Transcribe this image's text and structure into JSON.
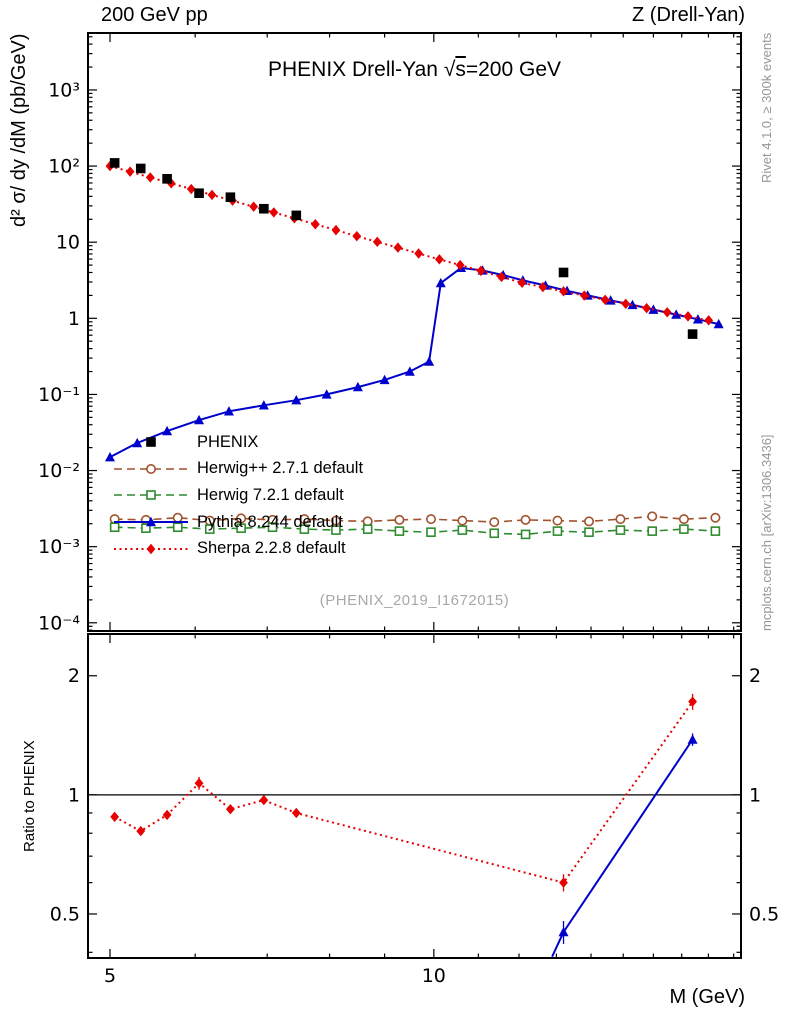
{
  "header": {
    "left_label": "200 GeV pp",
    "right_label": "Z (Drell-Yan)"
  },
  "sidebar_right": {
    "top_text": "Rivet 4.1.0, ≥ 300k events",
    "bottom_text": "mcplots.cern.ch [arXiv:1306.3436]"
  },
  "watermark": "(PHENIX_2019_I1672015)",
  "chart_data": {
    "type": "line",
    "title": "PHENIX Drell-Yan √s=200 GeV",
    "title_parts": {
      "prefix": "PHENIX Drell-Yan ",
      "sqrt": "√",
      "overlined": "s",
      "suffix": "=200 GeV"
    },
    "xlabel": "M (GeV)",
    "ylabel": "d² σ/ dy /dM (pb/GeV)",
    "ratio_label": "Ratio to PHENIX",
    "x_scale": "log",
    "y_scale": "log",
    "xlim": [
      4.77,
      19.3
    ],
    "ylim": [
      7.8e-05,
      5600
    ],
    "ratio_ylim": [
      0.387,
      2.55
    ],
    "ratio_ref_line": 1,
    "x_major_ticks": [
      {
        "value": 5,
        "label": "5"
      },
      {
        "value": 10,
        "label": "10"
      }
    ],
    "x_minor_ticks": [
      6,
      7,
      8,
      9,
      11,
      12,
      13,
      14,
      15,
      16,
      17,
      18,
      19
    ],
    "y_major_ticks": [
      {
        "value": 1000,
        "label": "10³"
      },
      {
        "value": 100,
        "label": "10²"
      },
      {
        "value": 10,
        "label": "10"
      },
      {
        "value": 1,
        "label": "1"
      },
      {
        "value": 0.1,
        "label": "10⁻¹"
      },
      {
        "value": 0.01,
        "label": "10⁻²"
      },
      {
        "value": 0.001,
        "label": "10⁻³"
      },
      {
        "value": 0.0001,
        "label": "10⁻⁴"
      }
    ],
    "ratio_ticks": [
      {
        "value": 2,
        "label": "2"
      },
      {
        "value": 1,
        "label": "1"
      },
      {
        "value": 0.5,
        "label": "0.5"
      }
    ],
    "ratio_minor_ticks": [
      0.4,
      0.6,
      0.7,
      0.8,
      0.9
    ],
    "series": [
      {
        "id": "phenix",
        "name": "PHENIX",
        "color": "#000000",
        "marker": "square",
        "fill": true,
        "line": "none",
        "z": 5,
        "x": [
          5.05,
          5.34,
          5.65,
          6.05,
          6.47,
          6.95,
          7.45,
          13.2,
          17.4
        ],
        "y": [
          110,
          93,
          68,
          44,
          39,
          27.5,
          22.5,
          4.0,
          0.62
        ]
      },
      {
        "id": "herwigpp",
        "name": "Herwig++ 2.7.1 default",
        "color": "#a0522d",
        "marker": "circle",
        "fill": false,
        "line": "dash",
        "line_width": 1.6,
        "z": 1,
        "x": [
          5.05,
          5.4,
          5.78,
          6.19,
          6.62,
          7.08,
          7.58,
          8.11,
          8.68,
          9.29,
          9.94,
          10.63,
          11.38,
          12.17,
          13.03,
          13.94,
          14.91,
          15.96,
          17.08,
          18.27
        ],
        "y": [
          0.0023,
          0.00225,
          0.0024,
          0.0022,
          0.00235,
          0.00225,
          0.0023,
          0.0022,
          0.00215,
          0.00225,
          0.0023,
          0.0022,
          0.0021,
          0.00225,
          0.0022,
          0.00215,
          0.0023,
          0.0025,
          0.0023,
          0.0024
        ]
      },
      {
        "id": "herwig7",
        "name": "Herwig 7.2.1 default",
        "color": "#2e8b2e",
        "marker": "square",
        "fill": false,
        "line": "dash",
        "line_width": 1.6,
        "z": 2,
        "x": [
          5.05,
          5.4,
          5.78,
          6.19,
          6.62,
          7.08,
          7.58,
          8.11,
          8.68,
          9.29,
          9.94,
          10.63,
          11.38,
          12.17,
          13.03,
          13.94,
          14.91,
          15.96,
          17.08,
          18.27
        ],
        "y": [
          0.0018,
          0.00175,
          0.0018,
          0.0017,
          0.00175,
          0.0018,
          0.0017,
          0.00165,
          0.0017,
          0.0016,
          0.00155,
          0.00165,
          0.0015,
          0.00145,
          0.0016,
          0.00155,
          0.00165,
          0.0016,
          0.0017,
          0.0016
        ]
      },
      {
        "id": "pythia",
        "name": "Pythia 8.244 default",
        "color": "#0000cc",
        "marker": "triangle",
        "fill": true,
        "line": "solid",
        "line_width": 2,
        "z": 3,
        "x": [
          5.0,
          5.3,
          5.65,
          6.05,
          6.45,
          6.95,
          7.45,
          7.95,
          8.5,
          9.0,
          9.5,
          9.9,
          10.15,
          10.6,
          11.1,
          11.6,
          12.1,
          12.7,
          13.3,
          13.9,
          14.6,
          15.3,
          16.0,
          16.8,
          17.6,
          18.4
        ],
        "y": [
          0.015,
          0.023,
          0.033,
          0.046,
          0.06,
          0.072,
          0.084,
          0.1,
          0.125,
          0.155,
          0.2,
          0.27,
          2.9,
          4.6,
          4.25,
          3.7,
          3.15,
          2.7,
          2.3,
          2.0,
          1.72,
          1.5,
          1.3,
          1.12,
          0.97,
          0.84
        ]
      },
      {
        "id": "sherpa",
        "name": "Sherpa 2.2.8 default",
        "color": "#e60000",
        "marker": "diamond",
        "fill": true,
        "line": "dot",
        "line_width": 2,
        "z": 4,
        "x": [
          5.0,
          5.22,
          5.45,
          5.7,
          5.95,
          6.22,
          6.5,
          6.8,
          7.1,
          7.42,
          7.76,
          8.11,
          8.48,
          8.86,
          9.26,
          9.68,
          10.12,
          10.58,
          11.06,
          11.56,
          12.08,
          12.63,
          13.2,
          13.8,
          14.43,
          15.08,
          15.77,
          16.48,
          17.23,
          18.01
        ],
        "y": [
          100,
          84.4,
          71,
          59.3,
          49.9,
          41.8,
          35.1,
          29.3,
          24.6,
          20.6,
          17.2,
          14.4,
          12.0,
          10.1,
          8.5,
          7.1,
          5.95,
          5.0,
          4.2,
          3.5,
          2.93,
          2.57,
          2.26,
          1.99,
          1.75,
          1.55,
          1.36,
          1.2,
          1.06,
          0.94
        ]
      }
    ],
    "ratio_series": [
      {
        "id": "pythia-ratio",
        "name": "Pythia 8.244 default",
        "color": "#0000cc",
        "marker": "triangle",
        "fill": true,
        "line": "solid",
        "line_width": 2,
        "z": 1,
        "line_pre": [
          12.88,
          0.39
        ],
        "x": [
          13.2,
          17.4
        ],
        "y": [
          0.45,
          1.38
        ],
        "yerr": [
          0.03,
          0.05
        ]
      },
      {
        "id": "sherpa-ratio",
        "name": "Sherpa 2.2.8 default",
        "color": "#e60000",
        "marker": "diamond",
        "fill": true,
        "line": "dot",
        "line_width": 2,
        "z": 2,
        "x": [
          5.05,
          5.34,
          5.65,
          6.05,
          6.47,
          6.95,
          7.45,
          13.2,
          17.4
        ],
        "y": [
          0.88,
          0.81,
          0.89,
          1.07,
          0.92,
          0.97,
          0.9,
          0.6,
          1.72
        ],
        "yerr": [
          0.02,
          0.02,
          0.02,
          0.04,
          0.02,
          0.02,
          0.02,
          0.03,
          0.08
        ]
      }
    ]
  },
  "legend": {
    "items": [
      {
        "label": "PHENIX"
      },
      {
        "label": "Herwig++ 2.7.1 default"
      },
      {
        "label": "Herwig 7.2.1 default"
      },
      {
        "label": "Pythia 8.244 default"
      },
      {
        "label": "Sherpa 2.2.8 default"
      }
    ]
  }
}
